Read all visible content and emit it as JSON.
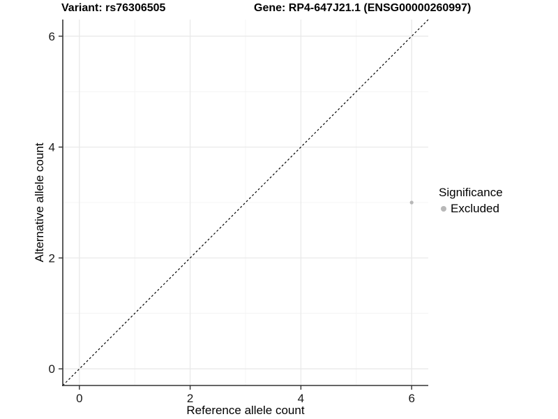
{
  "chart_data": {
    "type": "scatter",
    "titles": {
      "left": "Variant: rs76306505",
      "right": "Gene: RP4-647J21.1 (ENSG00000260997)"
    },
    "xlabel": "Reference allele count",
    "ylabel": "Alternative allele count",
    "xlim": [
      -0.3,
      6.3
    ],
    "ylim": [
      -0.3,
      6.3
    ],
    "x_ticks": [
      0,
      2,
      4,
      6
    ],
    "y_ticks": [
      0,
      2,
      4,
      6
    ],
    "x_minor_ticks": [
      1,
      3,
      5
    ],
    "y_minor_ticks": [
      1,
      3,
      5
    ],
    "grid": true,
    "diagonal_reference_line": {
      "style": "dashed",
      "color": "#000000",
      "from": [
        -0.3,
        -0.3
      ],
      "to": [
        6.3,
        6.3
      ]
    },
    "series": [
      {
        "name": "Excluded",
        "color": "#b8b8b8",
        "points": [
          {
            "x": 6,
            "y": 3
          }
        ]
      }
    ],
    "legend": {
      "title": "Significance",
      "position": "right",
      "items": [
        {
          "label": "Excluded",
          "color": "#b8b8b8"
        }
      ]
    },
    "colors": {
      "background": "#ffffff",
      "grid_major": "#e9e9e9",
      "grid_minor": "#f4f4f4",
      "axis_line": "#333333",
      "tick_label": "#1a1a1a"
    }
  }
}
